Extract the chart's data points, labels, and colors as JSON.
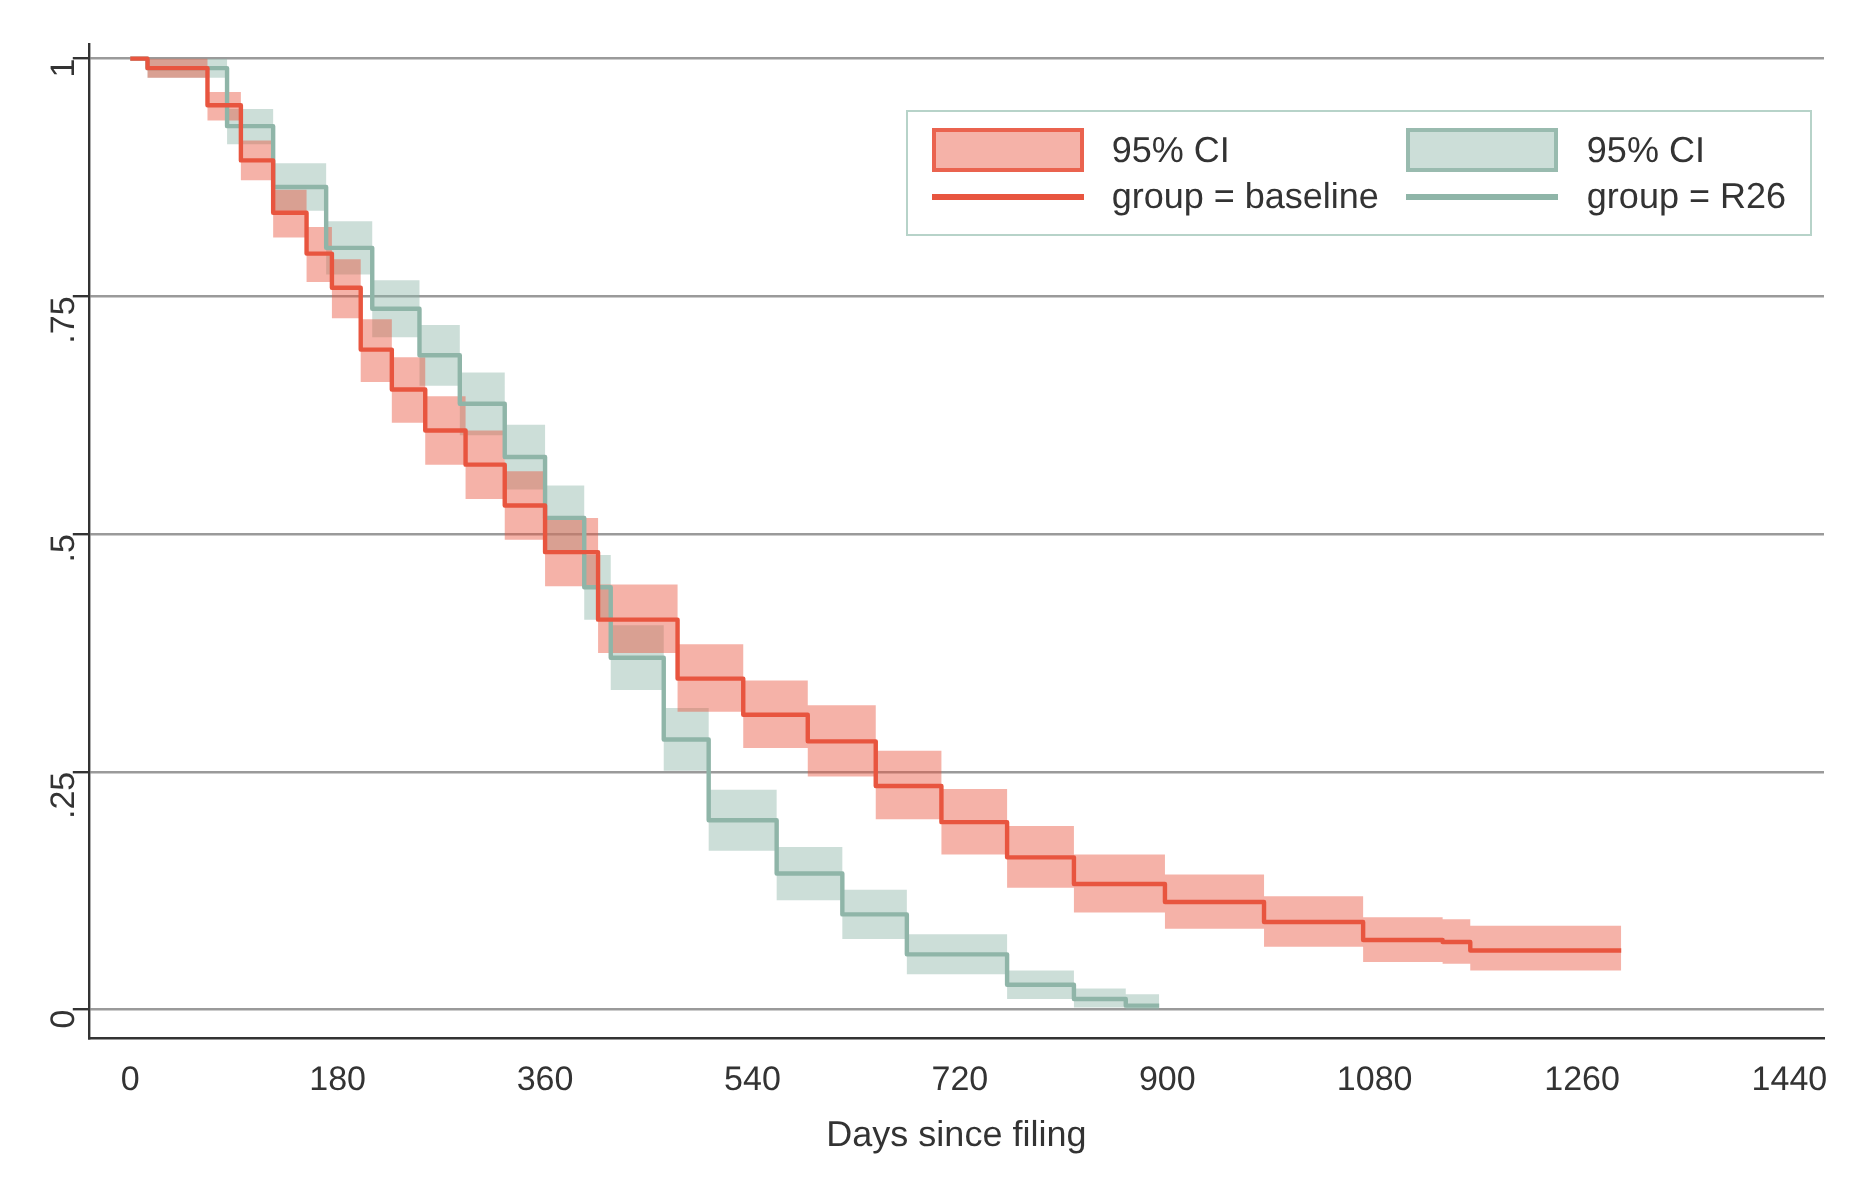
{
  "chart_data": {
    "type": "step",
    "xlabel": "Days since filing",
    "legend": "top right",
    "grid": "y",
    "annotations": [
      "95% CI"
    ],
    "xlim": [
      -36,
      1470
    ],
    "xticks": [
      0,
      180,
      360,
      540,
      720,
      900,
      1080,
      1260,
      1440
    ],
    "ylim": [
      -0.03,
      1.015
    ],
    "yticks": [
      {
        "value": 0,
        "label": "0"
      },
      {
        "value": 0.25,
        "label": ".25"
      },
      {
        "value": 0.5,
        "label": ".5"
      },
      {
        "value": 0.75,
        "label": ".75"
      },
      {
        "value": 1,
        "label": "1"
      }
    ],
    "series": [
      {
        "name": "group = baseline",
        "color": "#e8553f",
        "x": [
          0,
          15,
          67,
          96,
          124,
          153,
          175,
          200,
          227,
          256,
          291,
          325,
          360,
          406,
          475,
          532,
          588,
          647,
          704,
          761,
          819,
          898,
          984,
          1070,
          1139,
          1163,
          1294
        ],
        "values": [
          1,
          0.99,
          0.951,
          0.893,
          0.838,
          0.795,
          0.759,
          0.694,
          0.652,
          0.609,
          0.573,
          0.53,
          0.481,
          0.41,
          0.348,
          0.31,
          0.282,
          0.235,
          0.197,
          0.16,
          0.132,
          0.113,
          0.092,
          0.073,
          0.071,
          0.062,
          0.062
        ],
        "lower": [
          1,
          0.98,
          0.935,
          0.872,
          0.812,
          0.765,
          0.727,
          0.66,
          0.617,
          0.573,
          0.537,
          0.494,
          0.445,
          0.375,
          0.313,
          0.275,
          0.245,
          0.2,
          0.163,
          0.128,
          0.102,
          0.085,
          0.066,
          0.05,
          0.048,
          0.041,
          0.041
        ],
        "upper": [
          1,
          1,
          0.965,
          0.914,
          0.862,
          0.823,
          0.789,
          0.726,
          0.686,
          0.645,
          0.609,
          0.566,
          0.517,
          0.447,
          0.384,
          0.346,
          0.32,
          0.272,
          0.232,
          0.193,
          0.163,
          0.142,
          0.119,
          0.097,
          0.095,
          0.088,
          0.088
        ]
      },
      {
        "name": "group = R26",
        "color": "#8fb5a8",
        "x": [
          0,
          15,
          84,
          124,
          170,
          210,
          251,
          286,
          325,
          360,
          394,
          417,
          463,
          502,
          561,
          618,
          674,
          761,
          819,
          864,
          893
        ],
        "values": [
          1,
          0.99,
          0.929,
          0.865,
          0.801,
          0.737,
          0.688,
          0.637,
          0.581,
          0.517,
          0.444,
          0.37,
          0.284,
          0.199,
          0.143,
          0.1,
          0.058,
          0.026,
          0.011,
          0.004,
          0.004
        ],
        "lower": [
          1,
          0.98,
          0.91,
          0.84,
          0.773,
          0.707,
          0.656,
          0.604,
          0.547,
          0.483,
          0.41,
          0.336,
          0.251,
          0.167,
          0.115,
          0.074,
          0.037,
          0.011,
          0.002,
          0,
          0
        ],
        "upper": [
          1,
          1,
          0.947,
          0.89,
          0.829,
          0.767,
          0.72,
          0.67,
          0.615,
          0.551,
          0.478,
          0.404,
          0.317,
          0.231,
          0.171,
          0.126,
          0.079,
          0.041,
          0.022,
          0.016,
          0.016
        ]
      }
    ]
  }
}
